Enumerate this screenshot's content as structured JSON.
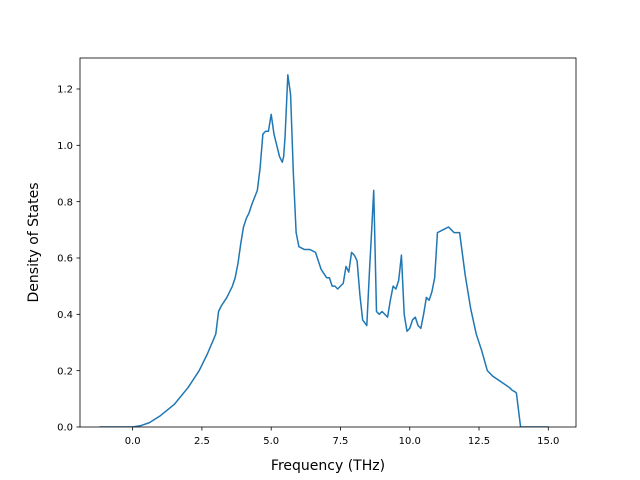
{
  "chart_data": {
    "type": "line",
    "title": "",
    "xlabel": "Frequency (THz)",
    "ylabel": "Density of States",
    "xlim": [
      -1.9,
      16.0
    ],
    "ylim": [
      0.0,
      1.31
    ],
    "xticks": [
      0.0,
      2.5,
      5.0,
      7.5,
      10.0,
      12.5,
      15.0
    ],
    "xtick_labels": [
      "0.0",
      "2.5",
      "5.0",
      "7.5",
      "10.0",
      "12.5",
      "15.0"
    ],
    "yticks": [
      0.0,
      0.2,
      0.4,
      0.6,
      0.8,
      1.0,
      1.2
    ],
    "ytick_labels": [
      "0.0",
      "0.2",
      "0.4",
      "0.6",
      "0.8",
      "1.0",
      "1.2"
    ],
    "grid": false,
    "line_color": "#1f77b4",
    "series": [
      {
        "x": [
          -1.2,
          -0.5,
          0.0,
          0.3,
          0.6,
          1.0,
          1.5,
          2.0,
          2.4,
          2.7,
          3.0,
          3.1,
          3.2,
          3.4,
          3.6,
          3.7,
          3.8,
          3.9,
          4.0,
          4.1,
          4.2,
          4.3,
          4.5,
          4.6,
          4.7,
          4.8,
          4.9,
          5.0,
          5.1,
          5.2,
          5.3,
          5.4,
          5.45,
          5.5,
          5.6,
          5.7,
          5.8,
          5.9,
          6.0,
          6.2,
          6.4,
          6.6,
          6.8,
          7.0,
          7.1,
          7.2,
          7.3,
          7.4,
          7.5,
          7.6,
          7.7,
          7.8,
          7.9,
          8.0,
          8.1,
          8.2,
          8.3,
          8.45,
          8.55,
          8.6,
          8.7,
          8.8,
          8.9,
          9.0,
          9.2,
          9.3,
          9.4,
          9.5,
          9.6,
          9.7,
          9.8,
          9.9,
          10.0,
          10.1,
          10.2,
          10.3,
          10.4,
          10.5,
          10.6,
          10.7,
          10.8,
          10.9,
          11.0,
          11.2,
          11.4,
          11.5,
          11.6,
          11.7,
          11.8,
          12.0,
          12.2,
          12.4,
          12.6,
          12.8,
          13.0,
          13.3,
          13.6,
          13.7,
          13.8,
          13.85,
          14.0,
          15.0
        ],
        "y": [
          0.0,
          0.0,
          0.0,
          0.005,
          0.015,
          0.04,
          0.08,
          0.14,
          0.2,
          0.26,
          0.33,
          0.41,
          0.43,
          0.46,
          0.5,
          0.53,
          0.58,
          0.65,
          0.71,
          0.74,
          0.76,
          0.79,
          0.84,
          0.92,
          1.04,
          1.05,
          1.05,
          1.11,
          1.04,
          1.0,
          0.96,
          0.94,
          0.96,
          1.03,
          1.25,
          1.18,
          0.9,
          0.69,
          0.64,
          0.63,
          0.63,
          0.62,
          0.56,
          0.53,
          0.53,
          0.5,
          0.5,
          0.49,
          0.5,
          0.51,
          0.57,
          0.55,
          0.62,
          0.61,
          0.59,
          0.47,
          0.38,
          0.36,
          0.56,
          0.65,
          0.84,
          0.41,
          0.4,
          0.41,
          0.39,
          0.45,
          0.5,
          0.49,
          0.52,
          0.61,
          0.4,
          0.34,
          0.35,
          0.38,
          0.39,
          0.36,
          0.35,
          0.4,
          0.46,
          0.45,
          0.48,
          0.53,
          0.69,
          0.7,
          0.71,
          0.7,
          0.69,
          0.69,
          0.69,
          0.54,
          0.42,
          0.33,
          0.27,
          0.2,
          0.18,
          0.16,
          0.14,
          0.13,
          0.125,
          0.12,
          0.0,
          0.0
        ]
      }
    ]
  }
}
